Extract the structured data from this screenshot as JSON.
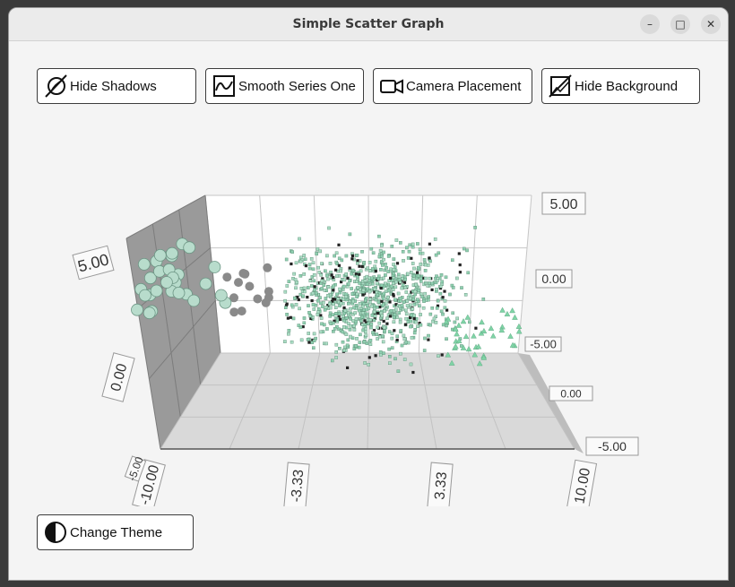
{
  "window": {
    "title": "Simple Scatter Graph"
  },
  "window_controls": {
    "minimize": "–",
    "maximize": "□",
    "close": "✕"
  },
  "toolbar": {
    "hide_shadows": "Hide Shadows",
    "smooth_series": "Smooth Series One",
    "camera_placement": "Camera Placement",
    "hide_background": "Hide Background"
  },
  "bottom": {
    "change_theme": "Change Theme"
  },
  "icons": {
    "hide_shadows": "shadow-off-icon",
    "smooth_series": "smooth-curve-icon",
    "camera_placement": "video-camera-icon",
    "hide_background": "background-off-icon",
    "change_theme": "theme-contrast-icon"
  },
  "chart_data": {
    "type": "scatter",
    "title": "",
    "axes": {
      "x": {
        "ticks": [
          "-10.00",
          "-3.33",
          "3.33",
          "10.00"
        ],
        "range": [
          -10,
          10
        ]
      },
      "y": {
        "ticks": [
          "-5.00",
          "0.00",
          "5.00"
        ],
        "range": [
          -5,
          5
        ]
      },
      "z": {
        "ticks": [
          "-5.00",
          "0.00",
          "5.00"
        ],
        "range": [
          -5,
          5
        ]
      }
    },
    "series": [
      {
        "marker": "square",
        "color": "#8fcfb0",
        "approx_points": 1000
      },
      {
        "marker": "sphere",
        "color": "#b8dccc",
        "approx_points": 30
      },
      {
        "marker": "triangle",
        "color": "#7fd4a6",
        "approx_points": 40
      }
    ],
    "grid": true,
    "shadows": true,
    "theme_colors": {
      "background": "#ffffff",
      "wall": "#a0a0a0",
      "floor": "#d8d8d8",
      "grid": "#c6c6c6"
    }
  }
}
